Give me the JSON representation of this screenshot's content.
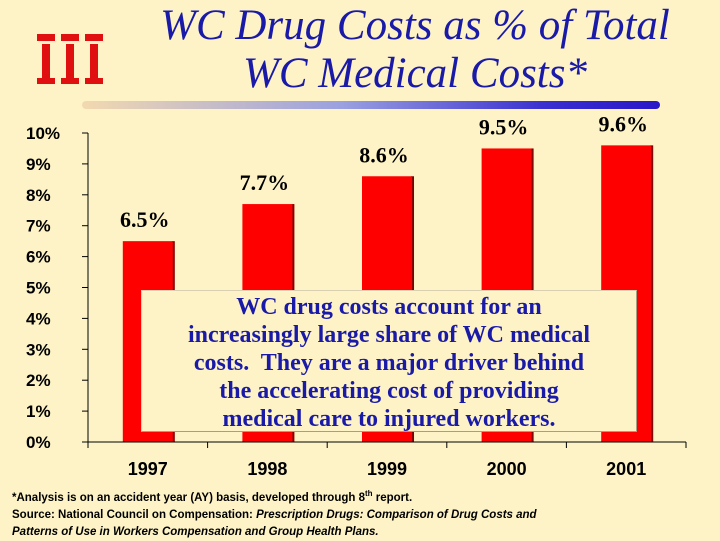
{
  "title": {
    "line1": "WC Drug Costs as % of Total",
    "line2": "WC Medical Costs*"
  },
  "logo": {
    "icon": "wcri-logo-icon",
    "text": "iii",
    "color": "#e01010"
  },
  "colors": {
    "bar": "#ff0000",
    "bar_edge": "#800000",
    "text_blue": "#1a1aa8",
    "background": "#fdf3c6"
  },
  "chart_data": {
    "type": "bar",
    "categories": [
      "1997",
      "1998",
      "1999",
      "2000",
      "2001"
    ],
    "values": [
      6.5,
      7.7,
      8.6,
      9.5,
      9.6
    ],
    "data_labels": [
      "6.5%",
      "7.7%",
      "8.6%",
      "9.5%",
      "9.6%"
    ],
    "y_ticks": [
      "0%",
      "1%",
      "2%",
      "3%",
      "4%",
      "5%",
      "6%",
      "7%",
      "8%",
      "9%",
      "10%"
    ],
    "ylim": [
      0,
      10
    ],
    "xlabel": "",
    "ylabel": "",
    "grid": false,
    "annotation": "WC drug costs account for an increasingly large share of WC medical costs. They are a major driver behind the accelerating cost of providing medical care to injured workers."
  },
  "callout": {
    "line1": "WC drug costs account for an",
    "line2": "increasingly large share of WC medical",
    "line3": "costs.  They are a major driver behind",
    "line4": "the accelerating cost of providing",
    "line5": "medical care to injured workers."
  },
  "footnote": {
    "line1_a": "*Analysis is on an accident year (AY) basis, developed through 8",
    "line1_sup": "th",
    "line1_b": " report.",
    "line2_a": "Source: National Council on Compensation: ",
    "line2_italic": "Prescription Drugs: Comparison of Drug Costs and",
    "line3_italic": "Patterns of Use in Workers Compensation and Group Health Plans."
  }
}
